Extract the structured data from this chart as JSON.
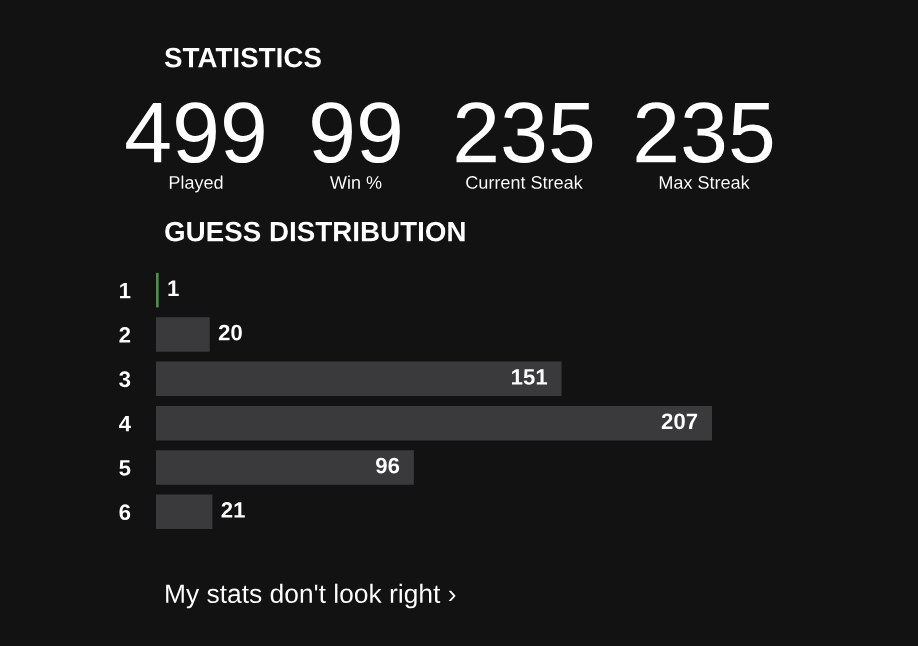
{
  "chart_data": [
    {
      "type": "other",
      "title": "STATISTICS",
      "annotations": [
        "499",
        "Played",
        "99",
        "Win %",
        "235",
        "Current Streak",
        "235",
        "Max Streak"
      ]
    },
    {
      "type": "bar",
      "title": "GUESS DISTRIBUTION",
      "orientation": "horizontal",
      "categories": [
        "1",
        "2",
        "3",
        "4",
        "5",
        "6"
      ],
      "values": [
        1,
        20,
        151,
        207,
        96,
        21
      ],
      "colors": [
        "#538d4e",
        "#3a3a3c",
        "#3a3a3c",
        "#3a3a3c",
        "#3a3a3c",
        "#3a3a3c"
      ],
      "data_labels": true,
      "annotations": [
        "My stats don't look right ›"
      ]
    }
  ]
}
